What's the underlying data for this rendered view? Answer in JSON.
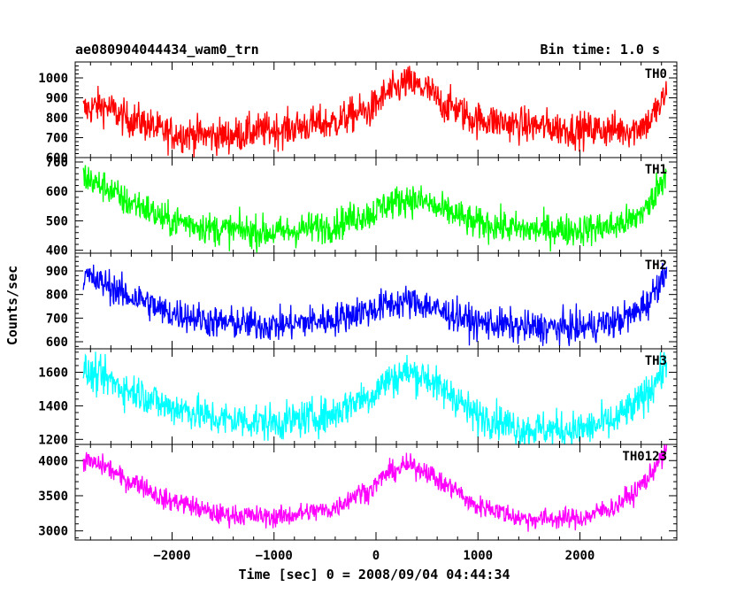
{
  "header": {
    "left_title": "ae080904044434_wam0_trn",
    "right_title": "Bin time: 1.0 s"
  },
  "chart_data": {
    "type": "line",
    "title": "ae080904044434_wam0_trn",
    "subtitle": "Bin time: 1.0 s",
    "xlabel": "Time [sec] 0 = 2008/09/04 04:44:34",
    "ylabel": "Counts/sec",
    "xlim": [
      -2950,
      2950
    ],
    "x_ticks": [
      -2000,
      -1000,
      0,
      1000,
      2000
    ],
    "x_tick_labels": [
      "−2000",
      "−1000",
      "0",
      "1000",
      "2000"
    ],
    "x_range_data": [
      -2870,
      2850
    ],
    "grid": false,
    "panels": [
      {
        "name": "TH0",
        "color": "#ff0000",
        "ylim": [
          600,
          1080
        ],
        "y_ticks": [
          600,
          700,
          800,
          900,
          1000
        ],
        "y_tick_labels": [
          "600",
          "700",
          "800",
          "900",
          "1000"
        ],
        "noise": 45,
        "trend_x": [
          -2870,
          -2700,
          -2400,
          -2000,
          -1500,
          -1000,
          -500,
          -100,
          150,
          300,
          450,
          700,
          1000,
          1500,
          2000,
          2300,
          2500,
          2650,
          2780,
          2850
        ],
        "trend_y": [
          840,
          860,
          790,
          720,
          710,
          740,
          770,
          830,
          930,
          975,
          950,
          860,
          790,
          760,
          740,
          740,
          740,
          770,
          850,
          930
        ]
      },
      {
        "name": "TH1",
        "color": "#00ff00",
        "ylim": [
          390,
          715
        ],
        "y_ticks": [
          400,
          500,
          600,
          700
        ],
        "y_tick_labels": [
          "400",
          "500",
          "600",
          "700"
        ],
        "noise": 28,
        "trend_x": [
          -2870,
          -2700,
          -2400,
          -2000,
          -1500,
          -1000,
          -500,
          -100,
          150,
          300,
          450,
          700,
          1000,
          1500,
          2000,
          2300,
          2500,
          2650,
          2780,
          2850
        ],
        "trend_y": [
          650,
          620,
          560,
          500,
          470,
          460,
          480,
          520,
          560,
          575,
          565,
          530,
          490,
          470,
          470,
          480,
          500,
          540,
          620,
          670
        ]
      },
      {
        "name": "TH2",
        "color": "#0000ff",
        "ylim": [
          570,
          975
        ],
        "y_ticks": [
          600,
          700,
          800,
          900
        ],
        "y_tick_labels": [
          "600",
          "700",
          "800",
          "900"
        ],
        "noise": 35,
        "trend_x": [
          -2870,
          -2700,
          -2400,
          -2000,
          -1500,
          -1000,
          -500,
          -100,
          150,
          300,
          450,
          700,
          1000,
          1500,
          2000,
          2300,
          2500,
          2650,
          2780,
          2850
        ],
        "trend_y": [
          880,
          850,
          790,
          720,
          680,
          670,
          690,
          730,
          760,
          770,
          760,
          720,
          680,
          660,
          660,
          680,
          710,
          760,
          850,
          920
        ]
      },
      {
        "name": "TH3",
        "color": "#00ffff",
        "ylim": [
          1170,
          1740
        ],
        "y_ticks": [
          1200,
          1400,
          1600
        ],
        "y_tick_labels": [
          "1200",
          "1400",
          "1600"
        ],
        "noise": 55,
        "trend_x": [
          -2870,
          -2700,
          -2400,
          -2000,
          -1500,
          -1000,
          -500,
          -100,
          150,
          300,
          450,
          700,
          1000,
          1500,
          2000,
          2300,
          2500,
          2650,
          2780,
          2850
        ],
        "trend_y": [
          1600,
          1570,
          1490,
          1390,
          1320,
          1300,
          1340,
          1450,
          1560,
          1600,
          1580,
          1480,
          1340,
          1260,
          1260,
          1300,
          1380,
          1470,
          1580,
          1650
        ]
      },
      {
        "name": "TH0123",
        "color": "#ff00ff",
        "ylim": [
          2870,
          4230
        ],
        "y_ticks": [
          3000,
          3500,
          4000
        ],
        "y_tick_labels": [
          "3000",
          "3500",
          "4000"
        ],
        "noise": 75,
        "trend_x": [
          -2870,
          -2700,
          -2400,
          -2000,
          -1500,
          -1000,
          -500,
          -100,
          150,
          300,
          450,
          700,
          1000,
          1500,
          2000,
          2300,
          2500,
          2650,
          2780,
          2850
        ],
        "trend_y": [
          4000,
          3930,
          3700,
          3420,
          3230,
          3200,
          3290,
          3560,
          3840,
          3930,
          3880,
          3640,
          3350,
          3170,
          3180,
          3320,
          3500,
          3720,
          4000,
          4130
        ]
      }
    ]
  }
}
